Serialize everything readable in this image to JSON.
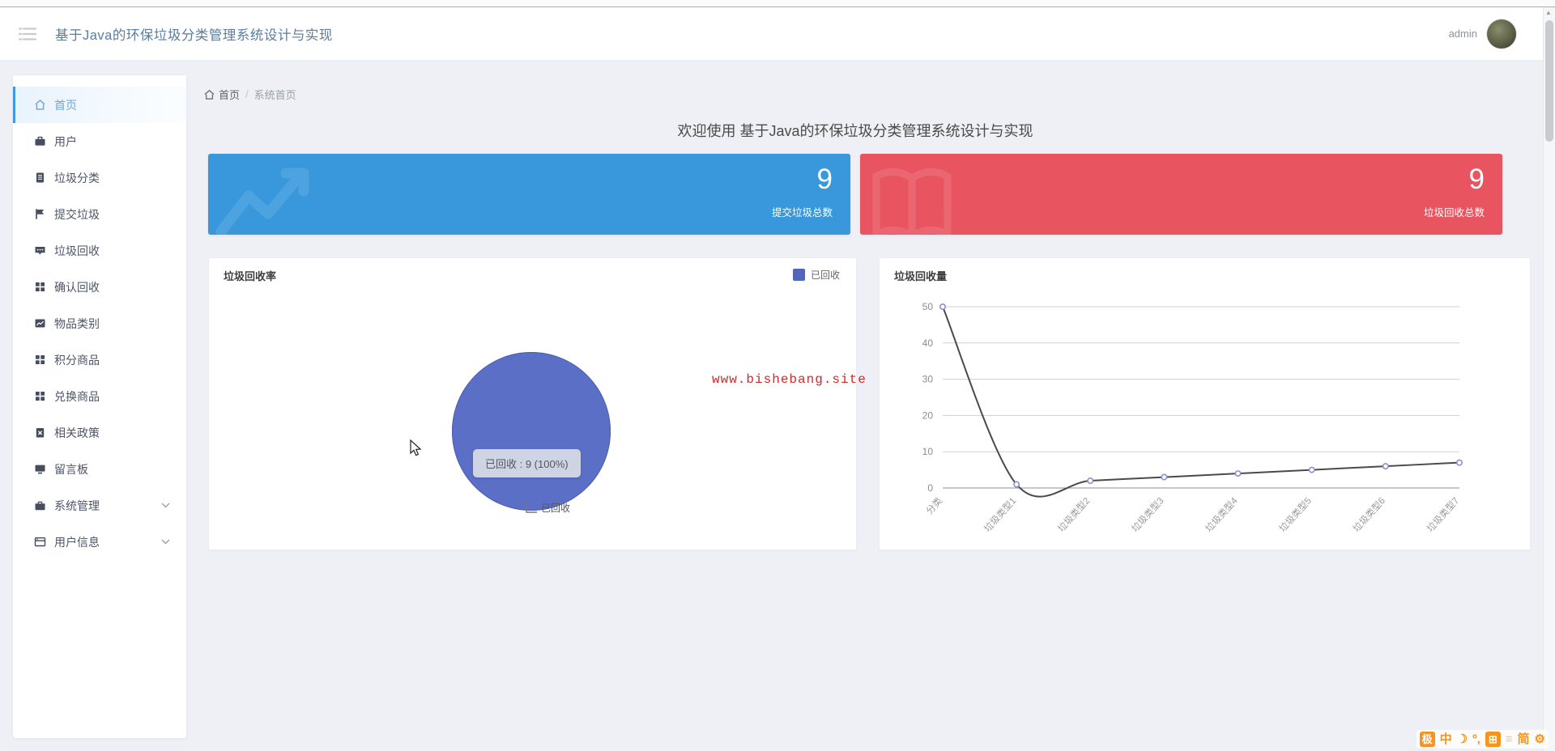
{
  "header": {
    "title": "基于Java的环保垃圾分类管理系统设计与实现",
    "user_name": "admin"
  },
  "breadcrumb": {
    "home": "首页",
    "separator": "/",
    "current": "系统首页"
  },
  "welcome": "欢迎使用 基于Java的环保垃圾分类管理系统设计与实现",
  "sidebar": {
    "items": [
      {
        "label": "首页",
        "icon": "home-icon",
        "active": true,
        "expandable": false
      },
      {
        "label": "用户",
        "icon": "briefcase-icon",
        "active": false,
        "expandable": false
      },
      {
        "label": "垃圾分类",
        "icon": "document-icon",
        "active": false,
        "expandable": false
      },
      {
        "label": "提交垃圾",
        "icon": "flag-icon",
        "active": false,
        "expandable": false
      },
      {
        "label": "垃圾回收",
        "icon": "chat-icon",
        "active": false,
        "expandable": false
      },
      {
        "label": "确认回收",
        "icon": "grid-icon",
        "active": false,
        "expandable": false
      },
      {
        "label": "物品类别",
        "icon": "chart-icon",
        "active": false,
        "expandable": false
      },
      {
        "label": "积分商品",
        "icon": "grid-icon",
        "active": false,
        "expandable": false
      },
      {
        "label": "兑换商品",
        "icon": "grid-icon",
        "active": false,
        "expandable": false
      },
      {
        "label": "相关政策",
        "icon": "clipboard-x-icon",
        "active": false,
        "expandable": false
      },
      {
        "label": "留言板",
        "icon": "board-icon",
        "active": false,
        "expandable": false
      },
      {
        "label": "系统管理",
        "icon": "bag-icon",
        "active": false,
        "expandable": true
      },
      {
        "label": "用户信息",
        "icon": "window-icon",
        "active": false,
        "expandable": true
      }
    ]
  },
  "stat_cards": [
    {
      "value": "9",
      "label": "提交垃圾总数",
      "color": "#3898db",
      "ghost_icon": "trend-chart-icon"
    },
    {
      "value": "9",
      "label": "垃圾回收总数",
      "color": "#e85560",
      "ghost_icon": "open-book-icon"
    }
  ],
  "watermark": "www.bishebang.site",
  "chart_data": [
    {
      "type": "pie",
      "title": "垃圾回收率",
      "legend": [
        "已回收"
      ],
      "legend_position": "top-right",
      "series": [
        {
          "name": "已回收",
          "value": 9,
          "percent": "100%"
        }
      ],
      "tooltip": "已回收 : 9 (100%)",
      "color": "#5b6fc6"
    },
    {
      "type": "line",
      "title": "垃圾回收量",
      "categories": [
        "分类",
        "垃圾类型1",
        "垃圾类型2",
        "垃圾类型3",
        "垃圾类型4",
        "垃圾类型5",
        "垃圾类型6",
        "垃圾类型7"
      ],
      "values": [
        50,
        1,
        2,
        3,
        4,
        5,
        6,
        7
      ],
      "ylim": [
        0,
        50
      ],
      "yticks": [
        0,
        10,
        20,
        30,
        40,
        50
      ],
      "grid": true,
      "smooth": true,
      "line_color": "#4a4a4a",
      "point_stroke": "#8891c9"
    }
  ],
  "ime_toolbar": {
    "icons": [
      {
        "name": "sogou-logo-icon",
        "glyph": "极",
        "style": "badge"
      },
      {
        "name": "chinese-mode-icon",
        "glyph": "中",
        "style": "plain"
      },
      {
        "name": "fullwidth-moon-icon",
        "glyph": "☽",
        "style": "plain"
      },
      {
        "name": "punctuation-icon",
        "glyph": "º,",
        "style": "plain"
      },
      {
        "name": "soft-keyboard-icon",
        "glyph": "⊞",
        "style": "badge"
      },
      {
        "name": "toolbox-icon",
        "glyph": "≡",
        "style": "muted"
      },
      {
        "name": "simplified-icon",
        "glyph": "简",
        "style": "plain"
      },
      {
        "name": "settings-gear-icon",
        "glyph": "⚙",
        "style": "plain"
      }
    ]
  }
}
